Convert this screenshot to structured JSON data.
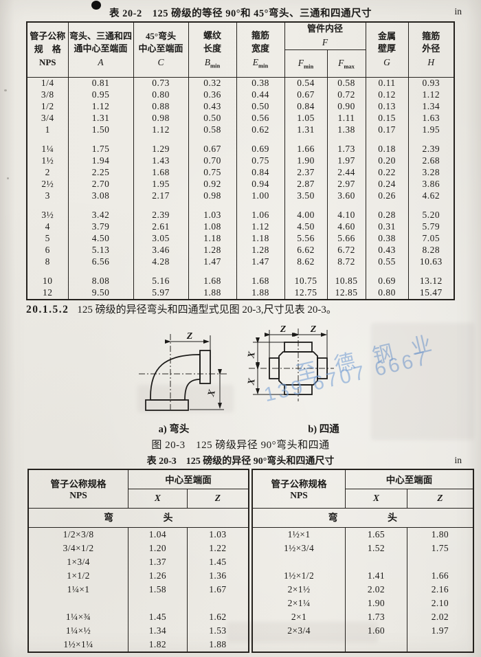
{
  "table2": {
    "title": "表 20-2　125 磅级的等径 90°和 45°弯头、三通和四通尺寸",
    "unit": "in",
    "cols": {
      "nps": [
        "管子公称",
        "规　格",
        "NPS"
      ],
      "a": {
        "l1": "弯头、三通和四",
        "l2": "通中心至端面",
        "sym": "A"
      },
      "c": {
        "l1": "45°弯头",
        "l2": "中心至端面",
        "sym": "C"
      },
      "b": {
        "l1": "螺纹",
        "l2": "长度",
        "sym": "B",
        "sub": "min"
      },
      "e": {
        "l1": "箍筋",
        "l2": "宽度",
        "sym": "E",
        "sub": "min"
      },
      "f": {
        "l1": "管件内径",
        "sym": "F"
      },
      "fmin": {
        "sym": "F",
        "sub": "min"
      },
      "fmax": {
        "sym": "F",
        "sub": "max"
      },
      "g": {
        "l1": "金属",
        "l2": "壁厚",
        "sym": "G"
      },
      "h": {
        "l1": "箍筋",
        "l2": "外径",
        "sym": "H"
      }
    },
    "groups": [
      [
        [
          "1/4",
          "0.81",
          "0.73",
          "0.32",
          "0.38",
          "0.54",
          "0.58",
          "0.11",
          "0.93"
        ],
        [
          "3/8",
          "0.95",
          "0.80",
          "0.36",
          "0.44",
          "0.67",
          "0.72",
          "0.12",
          "1.12"
        ],
        [
          "1/2",
          "1.12",
          "0.88",
          "0.43",
          "0.50",
          "0.84",
          "0.90",
          "0.13",
          "1.34"
        ],
        [
          "3/4",
          "1.31",
          "0.98",
          "0.50",
          "0.56",
          "1.05",
          "1.11",
          "0.15",
          "1.63"
        ],
        [
          "1",
          "1.50",
          "1.12",
          "0.58",
          "0.62",
          "1.31",
          "1.38",
          "0.17",
          "1.95"
        ]
      ],
      [
        [
          "1¼",
          "1.75",
          "1.29",
          "0.67",
          "0.69",
          "1.66",
          "1.73",
          "0.18",
          "2.39"
        ],
        [
          "1½",
          "1.94",
          "1.43",
          "0.70",
          "0.75",
          "1.90",
          "1.97",
          "0.20",
          "2.68"
        ],
        [
          "2",
          "2.25",
          "1.68",
          "0.75",
          "0.84",
          "2.37",
          "2.44",
          "0.22",
          "3.28"
        ],
        [
          "2½",
          "2.70",
          "1.95",
          "0.92",
          "0.94",
          "2.87",
          "2.97",
          "0.24",
          "3.86"
        ],
        [
          "3",
          "3.08",
          "2.17",
          "0.98",
          "1.00",
          "3.50",
          "3.60",
          "0.26",
          "4.62"
        ]
      ],
      [
        [
          "3½",
          "3.42",
          "2.39",
          "1.03",
          "1.06",
          "4.00",
          "4.10",
          "0.28",
          "5.20"
        ],
        [
          "4",
          "3.79",
          "2.61",
          "1.08",
          "1.12",
          "4.50",
          "4.60",
          "0.31",
          "5.79"
        ],
        [
          "5",
          "4.50",
          "3.05",
          "1.18",
          "1.18",
          "5.56",
          "5.66",
          "0.38",
          "7.05"
        ],
        [
          "6",
          "5.13",
          "3.46",
          "1.28",
          "1.28",
          "6.62",
          "6.72",
          "0.43",
          "8.28"
        ],
        [
          "8",
          "6.56",
          "4.28",
          "1.47",
          "1.47",
          "8.62",
          "8.72",
          "0.55",
          "10.63"
        ]
      ],
      [
        [
          "10",
          "8.08",
          "5.16",
          "1.68",
          "1.68",
          "10.75",
          "10.85",
          "0.69",
          "13.12"
        ],
        [
          "12",
          "9.50",
          "5.97",
          "1.88",
          "1.88",
          "12.75",
          "12.85",
          "0.80",
          "15.47"
        ]
      ]
    ]
  },
  "section": {
    "num": "20.1.5.2",
    "text": "125 磅级的异径弯头和四通型式见图 20-3,尺寸见表 20-3。"
  },
  "figure": {
    "dim_z": "Z",
    "dim_x": "X",
    "label_a": "a) 弯头",
    "label_b": "b) 四通",
    "caption": "图 20-3　125 磅级异径 90°弯头和四通",
    "watermark": {
      "line1": "至德钢业",
      "line2": "139 6707 6667",
      "color": "#78a0d4"
    }
  },
  "table3": {
    "title": "表 20-3　125 磅级的异径 90°弯头和四通尺寸",
    "unit": "in",
    "header": {
      "nps": "管子公称规格",
      "nps_sub": "NPS",
      "center": "中心至端面",
      "x": "X",
      "z": "Z",
      "span": "弯　　　　　头"
    },
    "left_rows": [
      [
        "1/2×3/8",
        "1.04",
        "1.03"
      ],
      [
        "3/4×1/2",
        "1.20",
        "1.22"
      ],
      [
        "1×3/4",
        "1.37",
        "1.45"
      ],
      [
        "1×1/2",
        "1.26",
        "1.36"
      ],
      [
        "1¼×1",
        "1.58",
        "1.67"
      ],
      null,
      [
        "1¼×¾",
        "1.45",
        "1.62"
      ],
      [
        "1¼×½",
        "1.34",
        "1.53"
      ],
      [
        "1½×1¼",
        "1.82",
        "1.88"
      ]
    ],
    "right_rows": [
      [
        "1½×1",
        "1.65",
        "1.80"
      ],
      [
        "1½×3/4",
        "1.52",
        "1.75"
      ],
      null,
      [
        "1½×1/2",
        "1.41",
        "1.66"
      ],
      [
        "2×1½",
        "2.02",
        "2.16"
      ],
      [
        "2×1¼",
        "1.90",
        "2.10"
      ],
      [
        "2×1",
        "1.73",
        "2.02"
      ],
      [
        "2×3/4",
        "1.60",
        "1.97"
      ],
      null
    ]
  }
}
